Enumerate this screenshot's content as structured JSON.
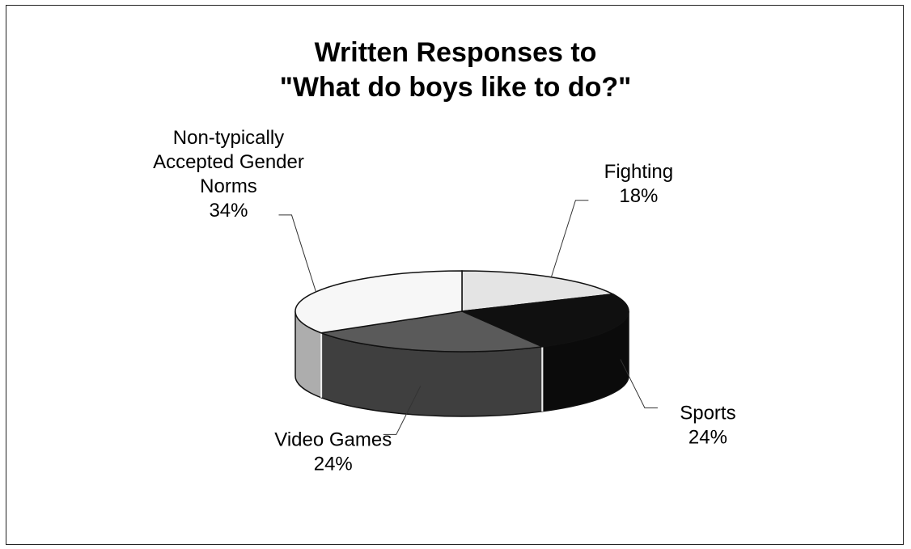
{
  "chart_data": {
    "type": "pie",
    "title_lines": [
      "Written Responses to",
      "\"What do boys like to do?\""
    ],
    "categories": [
      "Fighting",
      "Sports",
      "Video Games",
      "Non-typically Accepted Gender Norms"
    ],
    "values": [
      18,
      24,
      24,
      34
    ],
    "value_labels": [
      "18%",
      "24%",
      "24%",
      "34%"
    ],
    "label_lines": [
      [
        "Fighting"
      ],
      [
        "Sports"
      ],
      [
        "Video Games"
      ],
      [
        "Non-typically",
        "Accepted Gender",
        "Norms"
      ]
    ],
    "colors": [
      "#e4e4e4",
      "#101010",
      "#5a5a5a",
      "#f7f7f7"
    ],
    "style": "3d-pie",
    "legend": "none"
  }
}
